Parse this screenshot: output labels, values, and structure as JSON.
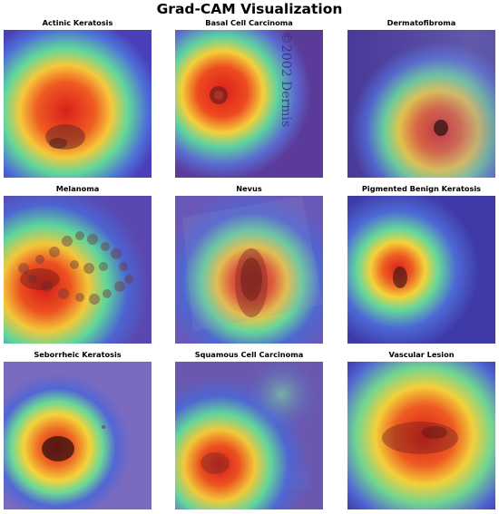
{
  "figure": {
    "title": "Grad-CAM Visualization"
  },
  "panels": [
    {
      "label": "Actinic Keratosis"
    },
    {
      "label": "Basal Cell Carcinoma",
      "watermark": "©2002 Dermis"
    },
    {
      "label": "Dermatofibroma"
    },
    {
      "label": "Melanoma"
    },
    {
      "label": "Nevus"
    },
    {
      "label": "Pigmented Benign Keratosis"
    },
    {
      "label": "Seborrheic Keratosis"
    },
    {
      "label": "Squamous Cell Carcinoma"
    },
    {
      "label": "Vascular Lesion"
    }
  ],
  "colormap": {
    "low": "#3b3fd0",
    "mid": "#48d8b0",
    "warm": "#f2d23a",
    "hot": "#e0241e",
    "lesion": "#5a1f1a"
  }
}
